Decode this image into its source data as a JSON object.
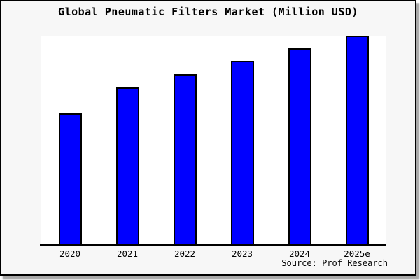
{
  "window": {
    "background": "#f7f7f7",
    "border_color": "#000000"
  },
  "chart_data": {
    "type": "bar",
    "title": "Global Pneumatic Filters Market (Million USD)",
    "categories": [
      "2020",
      "2021",
      "2022",
      "2023",
      "2024",
      "2025e"
    ],
    "values": [
      628,
      752,
      815,
      878,
      940,
      1000
    ],
    "xlabel": "",
    "ylabel": "",
    "ylim": [
      0,
      1000
    ],
    "y_axis_labels_shown": false,
    "grid": false,
    "legend": false,
    "bar_color": "#0000ff",
    "bar_edge_color": "#000000",
    "plot_background": "#ffffff"
  },
  "source": {
    "label": "Source: Prof Research"
  }
}
